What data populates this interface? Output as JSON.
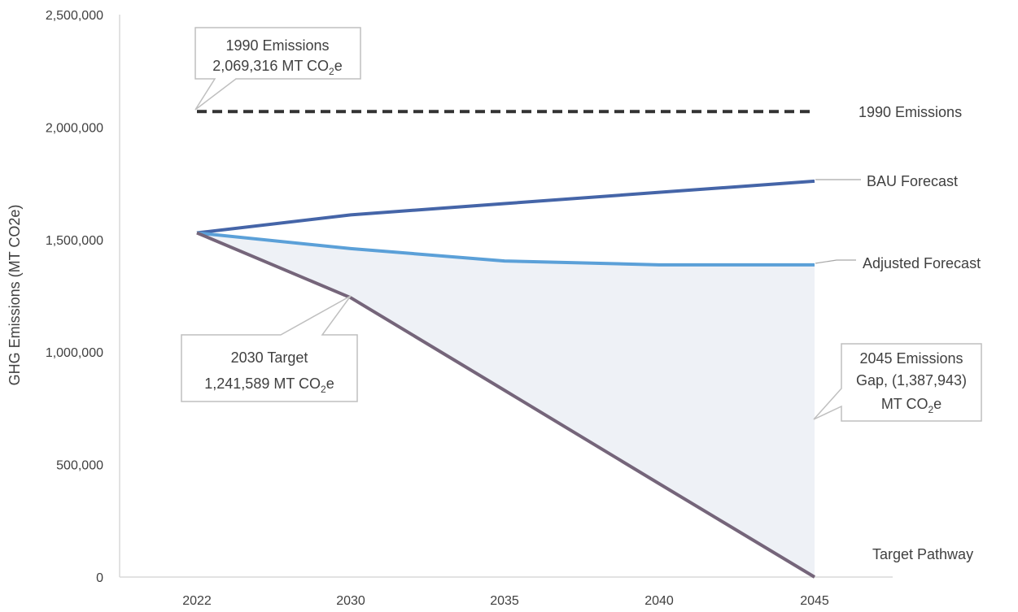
{
  "chart_data": {
    "type": "line",
    "ylabel": "GHG Emissions (MT CO2e)",
    "xlabel": "",
    "title": "",
    "categories": [
      "2022",
      "2030",
      "2035",
      "2040",
      "2045"
    ],
    "x_ticks": [
      "2022",
      "2030",
      "2035",
      "2040",
      "2045"
    ],
    "y_ticks": [
      "0",
      "500,000",
      "1,000,000",
      "1,500,000",
      "2,000,000",
      "2,500,000"
    ],
    "ylim": [
      0,
      2500000
    ],
    "grid": false,
    "legend": "inline labels at right end of series",
    "series": [
      {
        "name": "1990 Emissions",
        "style": "dashed",
        "color": "#333333",
        "x": [
          2022,
          2045
        ],
        "values": [
          2069316,
          2069316
        ]
      },
      {
        "name": "BAU Forecast",
        "style": "solid",
        "color": "#4565a8",
        "x": [
          2022,
          2030,
          2035,
          2040,
          2045
        ],
        "values": [
          1530000,
          1610000,
          1660000,
          1710000,
          1760000
        ]
      },
      {
        "name": "Adjusted Forecast",
        "style": "solid",
        "color": "#5ba0d8",
        "x": [
          2022,
          2030,
          2035,
          2040,
          2045
        ],
        "values": [
          1530000,
          1460000,
          1405000,
          1387943,
          1387943
        ]
      },
      {
        "name": "Target Pathway",
        "style": "solid",
        "color": "#75657a",
        "x": [
          2022,
          2030,
          2035,
          2040,
          2045
        ],
        "values": [
          1530000,
          1241589,
          830000,
          415000,
          0
        ]
      }
    ],
    "gap_fill_color": "#eef1f6",
    "annotations": [
      {
        "line1": "1990 Emissions",
        "line2_prefix": "2,069,316 MT CO",
        "sub": "2",
        "suffix": "e"
      },
      {
        "line1": "2030 Target",
        "line2_prefix": "1,241,589 MT CO",
        "sub": "2",
        "suffix": "e"
      },
      {
        "line1": "2045 Emissions",
        "line2": "Gap,  (1,387,943)",
        "line3_prefix": "MT CO",
        "sub": "2",
        "suffix": "e"
      }
    ]
  }
}
